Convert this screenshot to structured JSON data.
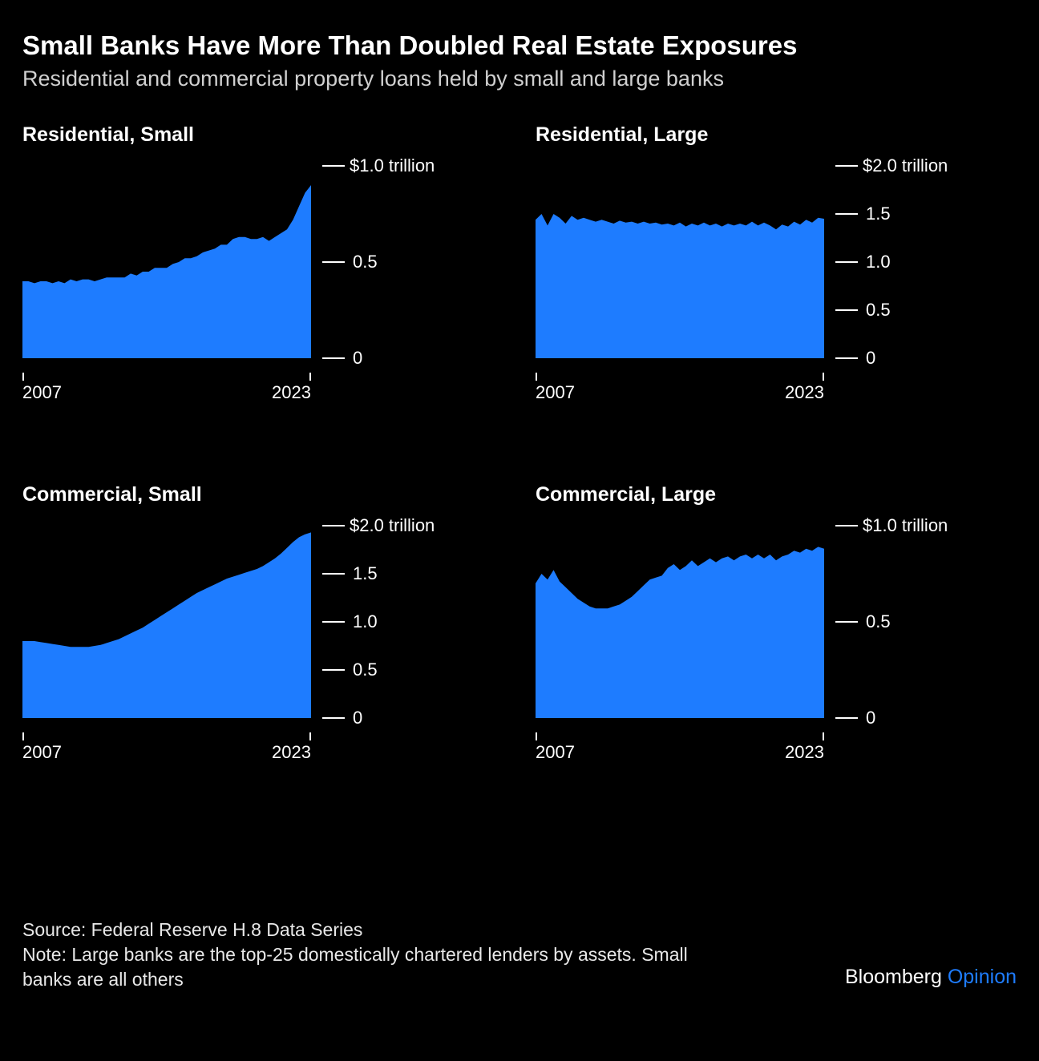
{
  "title": "Small Banks Have More Than Doubled Real Estate Exposures",
  "subtitle": "Residential and commercial property loans held by small and large banks",
  "background_color": "#000000",
  "text_color": "#ffffff",
  "series_color": "#1e7cff",
  "axis_color": "#ffffff",
  "title_fontsize": 33,
  "subtitle_fontsize": 27,
  "panel_title_fontsize": 25,
  "tick_fontsize": 22,
  "footer_fontsize": 23,
  "x_start_label": "2007",
  "x_end_label": "2023",
  "unit_label": "trillion",
  "panels": [
    {
      "key": "res_small",
      "title": "Residential, Small",
      "ymax": 1.0,
      "yticks": [
        {
          "v": 1.0,
          "label": "$1.0",
          "show_unit": true
        },
        {
          "v": 0.5,
          "label": "0.5",
          "show_unit": false
        },
        {
          "v": 0.0,
          "label": "0",
          "show_unit": false
        }
      ],
      "values": [
        0.4,
        0.4,
        0.39,
        0.4,
        0.4,
        0.39,
        0.4,
        0.39,
        0.41,
        0.4,
        0.41,
        0.41,
        0.4,
        0.41,
        0.42,
        0.42,
        0.42,
        0.42,
        0.44,
        0.43,
        0.45,
        0.45,
        0.47,
        0.47,
        0.47,
        0.49,
        0.5,
        0.52,
        0.52,
        0.53,
        0.55,
        0.56,
        0.57,
        0.59,
        0.59,
        0.62,
        0.63,
        0.63,
        0.62,
        0.62,
        0.63,
        0.61,
        0.63,
        0.65,
        0.67,
        0.72,
        0.79,
        0.86,
        0.9
      ]
    },
    {
      "key": "res_large",
      "title": "Residential, Large",
      "ymax": 2.0,
      "yticks": [
        {
          "v": 2.0,
          "label": "$2.0",
          "show_unit": true
        },
        {
          "v": 1.5,
          "label": "1.5",
          "show_unit": false
        },
        {
          "v": 1.0,
          "label": "1.0",
          "show_unit": false
        },
        {
          "v": 0.5,
          "label": "0.5",
          "show_unit": false
        },
        {
          "v": 0.0,
          "label": "0",
          "show_unit": false
        }
      ],
      "values": [
        1.44,
        1.5,
        1.38,
        1.5,
        1.46,
        1.4,
        1.48,
        1.44,
        1.46,
        1.44,
        1.42,
        1.44,
        1.42,
        1.4,
        1.43,
        1.41,
        1.42,
        1.4,
        1.42,
        1.4,
        1.41,
        1.39,
        1.4,
        1.38,
        1.41,
        1.37,
        1.4,
        1.38,
        1.41,
        1.38,
        1.4,
        1.37,
        1.4,
        1.38,
        1.4,
        1.38,
        1.42,
        1.38,
        1.41,
        1.38,
        1.34,
        1.39,
        1.37,
        1.42,
        1.39,
        1.44,
        1.41,
        1.46,
        1.45
      ]
    },
    {
      "key": "com_small",
      "title": "Commercial, Small",
      "ymax": 2.0,
      "yticks": [
        {
          "v": 2.0,
          "label": "$2.0",
          "show_unit": true
        },
        {
          "v": 1.5,
          "label": "1.5",
          "show_unit": false
        },
        {
          "v": 1.0,
          "label": "1.0",
          "show_unit": false
        },
        {
          "v": 0.5,
          "label": "0.5",
          "show_unit": false
        },
        {
          "v": 0.0,
          "label": "0",
          "show_unit": false
        }
      ],
      "values": [
        0.8,
        0.8,
        0.8,
        0.79,
        0.78,
        0.77,
        0.76,
        0.75,
        0.74,
        0.74,
        0.74,
        0.74,
        0.75,
        0.76,
        0.78,
        0.8,
        0.82,
        0.85,
        0.88,
        0.91,
        0.94,
        0.98,
        1.02,
        1.06,
        1.1,
        1.14,
        1.18,
        1.22,
        1.26,
        1.3,
        1.33,
        1.36,
        1.39,
        1.42,
        1.45,
        1.47,
        1.49,
        1.51,
        1.53,
        1.55,
        1.58,
        1.62,
        1.66,
        1.71,
        1.77,
        1.83,
        1.88,
        1.91,
        1.93
      ]
    },
    {
      "key": "com_large",
      "title": "Commercial, Large",
      "ymax": 1.0,
      "yticks": [
        {
          "v": 1.0,
          "label": "$1.0",
          "show_unit": true
        },
        {
          "v": 0.5,
          "label": "0.5",
          "show_unit": false
        },
        {
          "v": 0.0,
          "label": "0",
          "show_unit": false
        }
      ],
      "values": [
        0.7,
        0.75,
        0.72,
        0.77,
        0.71,
        0.68,
        0.65,
        0.62,
        0.6,
        0.58,
        0.57,
        0.57,
        0.57,
        0.58,
        0.59,
        0.61,
        0.63,
        0.66,
        0.69,
        0.72,
        0.73,
        0.74,
        0.78,
        0.8,
        0.77,
        0.79,
        0.82,
        0.79,
        0.81,
        0.83,
        0.81,
        0.83,
        0.84,
        0.82,
        0.84,
        0.85,
        0.83,
        0.85,
        0.83,
        0.85,
        0.82,
        0.84,
        0.85,
        0.87,
        0.86,
        0.88,
        0.87,
        0.89,
        0.88
      ]
    }
  ],
  "source": "Source: Federal Reserve H.8 Data Series",
  "note": "Note: Large banks are the top-25 domestically chartered lenders by assets. Small banks are all others",
  "brand_1": "Bloomberg",
  "brand_2": "Opinion"
}
